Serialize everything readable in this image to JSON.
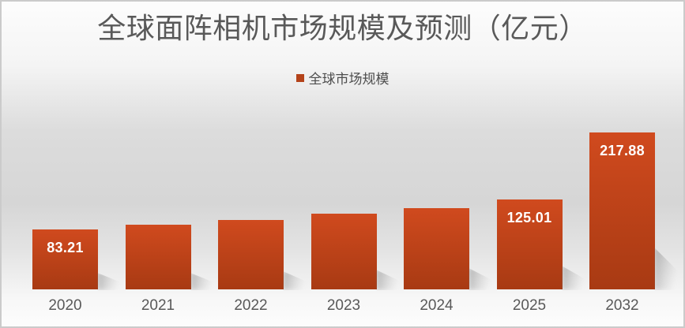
{
  "colors": {
    "bar_gradient_top": "#d04a1e",
    "bar_gradient_bottom": "#a83a13",
    "legend_swatch": "#b4431a",
    "title_text": "#595959",
    "axis_label_text": "#595959",
    "value_label_text": "#ffffff",
    "background_mid_gray": "#d6d6d6",
    "frame_border": "#cbcbcb"
  },
  "chart_data": {
    "type": "bar",
    "title": "全球面阵相机市场规模及预测（亿元）",
    "legend": [
      {
        "label": "全球市场规模",
        "color": "#b4431a"
      }
    ],
    "legend_position": "top-center",
    "categories": [
      "2020",
      "2021",
      "2022",
      "2023",
      "2024",
      "2025",
      "2032"
    ],
    "series": [
      {
        "name": "全球市场规模",
        "values": [
          83.21,
          90,
          96,
          105,
          113,
          125.01,
          217.88
        ]
      }
    ],
    "data_labels": [
      "83.21",
      "",
      "",
      "",
      "",
      "125.01",
      "217.88"
    ],
    "grid": false,
    "y_axis_visible": false,
    "x_axis_visible": true
  }
}
